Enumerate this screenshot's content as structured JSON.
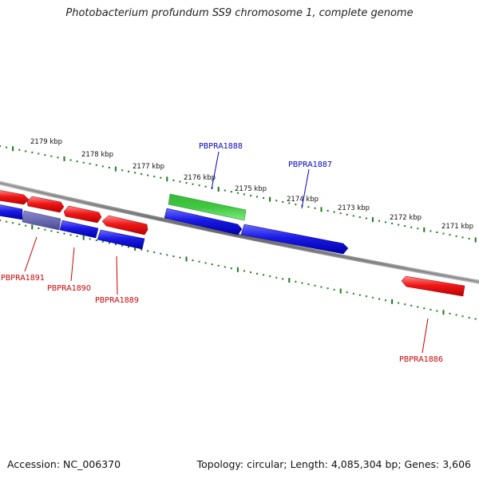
{
  "title": "Photobacterium profundum SS9 chromosome 1, complete genome",
  "footer": {
    "accession": "Accession: NC_006370",
    "summary": "Topology: circular; Length: 4,085,304 bp; Genes: 3,606"
  },
  "scale": {
    "unit": "kbp",
    "ticks": [
      "2179 kbp",
      "2178 kbp",
      "2177 kbp",
      "2176 kbp",
      "2175 kbp",
      "2174 kbp",
      "2173 kbp",
      "2172 kbp",
      "2171 kbp"
    ]
  },
  "colors": {
    "forward": "#e01010",
    "reverse": "#1010d8",
    "rna": "#3cc23c",
    "forward_label": "#cc0000",
    "reverse_label": "#0000cc",
    "tick": "#1a7a1a",
    "backbone": "#808080"
  },
  "genes": [
    {
      "id": "PBPRA1891",
      "label": "PBPRA1891",
      "strand": "forward"
    },
    {
      "id": "PBPRA1890",
      "label": "PBPRA1890",
      "strand": "forward"
    },
    {
      "id": "PBPRA1889",
      "label": "PBPRA1889",
      "strand": "forward"
    },
    {
      "id": "PBPRA1888",
      "label": "PBPRA1888",
      "strand": "reverse"
    },
    {
      "id": "PBPRA1887",
      "label": "PBPRA1887",
      "strand": "reverse"
    },
    {
      "id": "PBPRA1886",
      "label": "PBPRA1886",
      "strand": "forward"
    }
  ]
}
